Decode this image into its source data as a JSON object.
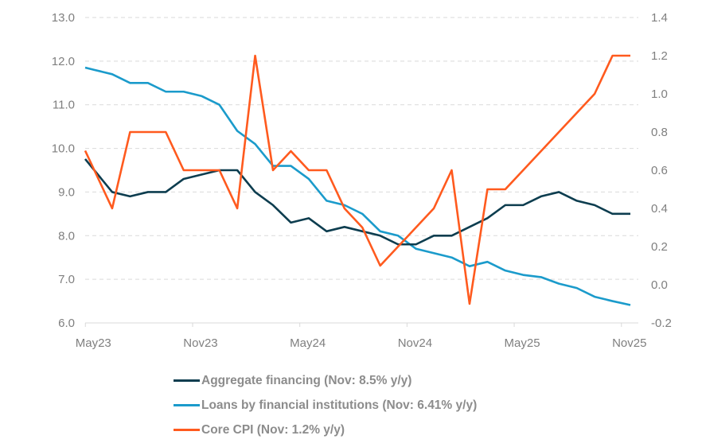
{
  "chart_data": {
    "type": "line",
    "x": [
      "May23",
      "Jun23",
      "Jul23",
      "Aug23",
      "Sep23",
      "Oct23",
      "Nov23",
      "Dec23",
      "Jan24",
      "Feb24",
      "Mar24",
      "Apr24",
      "May24",
      "Jun24",
      "Jul24",
      "Aug24",
      "Sep24",
      "Oct24",
      "Nov24",
      "Dec24",
      "Jan25",
      "Feb25",
      "Mar25",
      "Apr25",
      "May25",
      "Jun25",
      "Jul25",
      "Aug25",
      "Sep25",
      "Oct25",
      "Nov25"
    ],
    "x_tick_labels": [
      "May23",
      "Nov23",
      "May24",
      "Nov24",
      "May25",
      "Nov25"
    ],
    "y_left": {
      "range": [
        6.0,
        13.0
      ],
      "ticks": [
        "6.0",
        "7.0",
        "8.0",
        "9.0",
        "10.0",
        "11.0",
        "12.0",
        "13.0"
      ]
    },
    "y_right": {
      "range": [
        -0.2,
        1.4
      ],
      "ticks": [
        "-0.2",
        "0.0",
        "0.2",
        "0.4",
        "0.6",
        "0.8",
        "1.0",
        "1.2",
        "1.4"
      ]
    },
    "grid": "horizontal dashed",
    "legend_position": "bottom",
    "series": [
      {
        "name": "Aggregate financing (Nov: 8.5% y/y)",
        "axis": "left",
        "color": "#0d3d4f",
        "values": [
          9.5,
          9.0,
          8.9,
          9.0,
          9.0,
          9.3,
          9.4,
          9.5,
          9.5,
          9.0,
          8.7,
          8.3,
          8.4,
          8.1,
          8.2,
          8.1,
          8.0,
          7.8,
          7.8,
          8.0,
          8.0,
          8.2,
          8.4,
          8.7,
          8.7,
          8.9,
          9.0,
          8.8,
          8.7,
          8.5,
          8.5
        ]
      },
      {
        "name": "Loans by financial institutions (Nov: 6.41% y/y)",
        "axis": "left",
        "color": "#1b9bcb",
        "values": [
          11.8,
          11.7,
          11.5,
          11.5,
          11.3,
          11.3,
          11.2,
          11.0,
          10.4,
          10.1,
          9.6,
          9.6,
          9.3,
          8.8,
          8.7,
          8.5,
          8.1,
          8.0,
          7.7,
          7.6,
          7.5,
          7.3,
          7.4,
          7.2,
          7.1,
          7.05,
          6.9,
          6.8,
          6.6,
          6.5,
          6.41
        ]
      },
      {
        "name": "Core CPI (Nov: 1.2% y/y)",
        "axis": "right",
        "color": "#ff5a1e",
        "values": [
          0.6,
          0.4,
          0.8,
          0.8,
          0.8,
          0.6,
          0.6,
          0.6,
          0.4,
          1.2,
          0.6,
          0.7,
          0.6,
          0.6,
          0.4,
          0.3,
          0.1,
          0.2,
          0.3,
          0.4,
          0.6,
          -0.1,
          0.5,
          0.5,
          0.6,
          0.7,
          0.8,
          0.9,
          1.0,
          1.2,
          1.2
        ]
      }
    ]
  }
}
